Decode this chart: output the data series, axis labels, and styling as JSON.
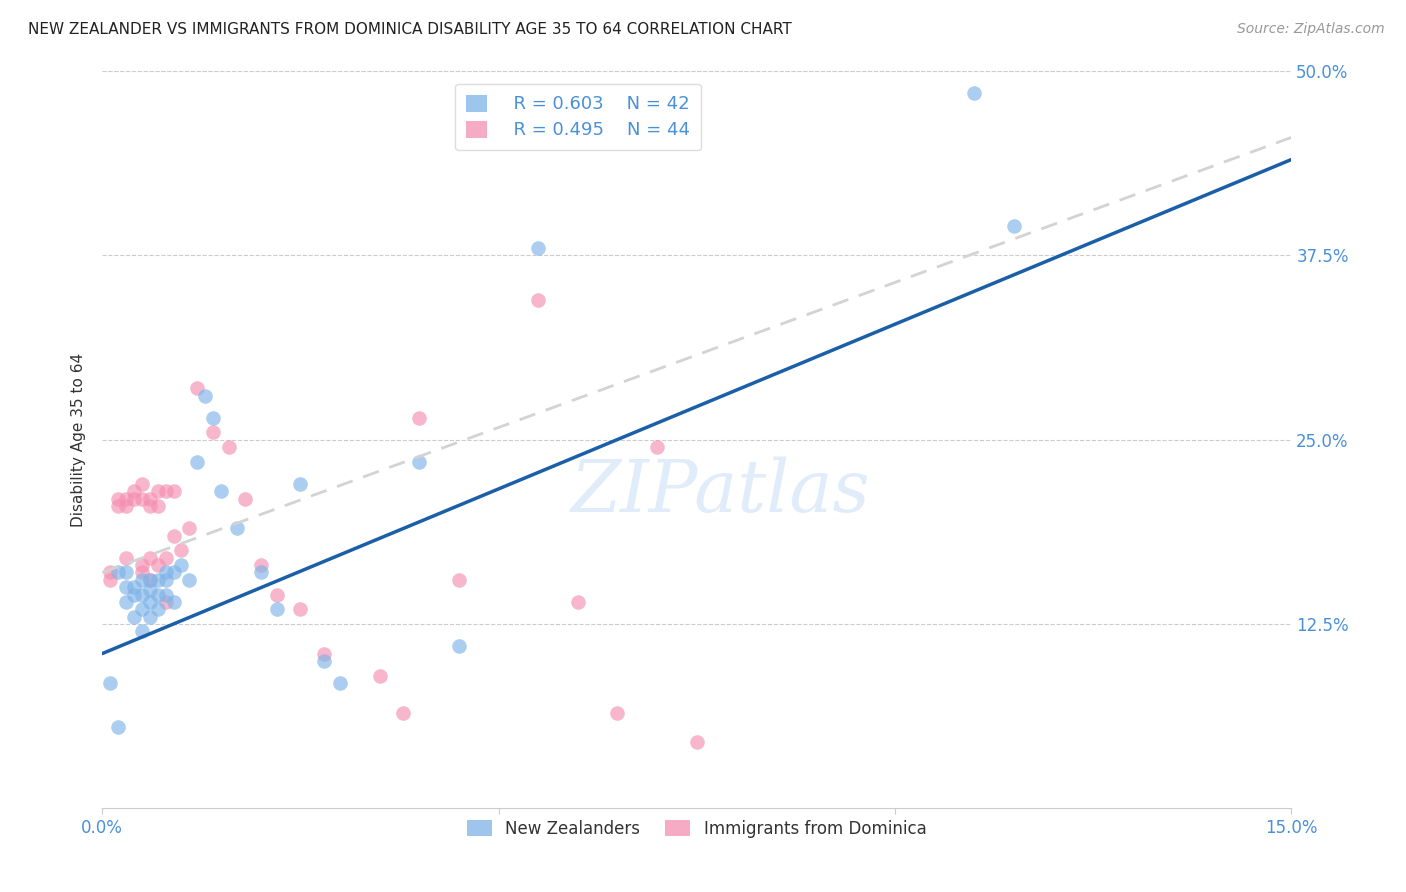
{
  "title": "NEW ZEALANDER VS IMMIGRANTS FROM DOMINICA DISABILITY AGE 35 TO 64 CORRELATION CHART",
  "source": "Source: ZipAtlas.com",
  "ylabel": "Disability Age 35 to 64",
  "xmin": 0.0,
  "xmax": 0.15,
  "ymin": 0.0,
  "ymax": 0.5,
  "xticks": [
    0.0,
    0.05,
    0.1,
    0.15
  ],
  "yticks": [
    0.0,
    0.125,
    0.25,
    0.375,
    0.5
  ],
  "legend_r_blue": "R = 0.603",
  "legend_n_blue": "N = 42",
  "legend_r_pink": "R = 0.495",
  "legend_n_pink": "N = 44",
  "blue_color": "#7EB3E8",
  "pink_color": "#F48FB1",
  "blue_line_color": "#1A5FA8",
  "pink_line_color": "#D3D3D3",
  "watermark_text": "ZIPatlas",
  "blue_scatter_x": [
    0.001,
    0.002,
    0.002,
    0.003,
    0.003,
    0.003,
    0.004,
    0.004,
    0.004,
    0.005,
    0.005,
    0.005,
    0.005,
    0.006,
    0.006,
    0.006,
    0.006,
    0.007,
    0.007,
    0.007,
    0.008,
    0.008,
    0.008,
    0.009,
    0.009,
    0.01,
    0.011,
    0.012,
    0.013,
    0.014,
    0.015,
    0.017,
    0.02,
    0.022,
    0.025,
    0.028,
    0.03,
    0.04,
    0.045,
    0.055,
    0.11,
    0.115
  ],
  "blue_scatter_y": [
    0.085,
    0.055,
    0.16,
    0.16,
    0.15,
    0.14,
    0.15,
    0.145,
    0.13,
    0.155,
    0.145,
    0.135,
    0.12,
    0.155,
    0.148,
    0.14,
    0.13,
    0.155,
    0.145,
    0.135,
    0.16,
    0.155,
    0.145,
    0.16,
    0.14,
    0.165,
    0.155,
    0.235,
    0.28,
    0.265,
    0.215,
    0.19,
    0.16,
    0.135,
    0.22,
    0.1,
    0.085,
    0.235,
    0.11,
    0.38,
    0.485,
    0.395
  ],
  "pink_scatter_x": [
    0.001,
    0.001,
    0.002,
    0.002,
    0.003,
    0.003,
    0.003,
    0.004,
    0.004,
    0.005,
    0.005,
    0.005,
    0.005,
    0.006,
    0.006,
    0.006,
    0.006,
    0.007,
    0.007,
    0.007,
    0.008,
    0.008,
    0.008,
    0.009,
    0.009,
    0.01,
    0.011,
    0.012,
    0.014,
    0.016,
    0.018,
    0.02,
    0.022,
    0.025,
    0.028,
    0.035,
    0.038,
    0.04,
    0.045,
    0.055,
    0.06,
    0.065,
    0.07,
    0.075
  ],
  "pink_scatter_y": [
    0.16,
    0.155,
    0.21,
    0.205,
    0.21,
    0.205,
    0.17,
    0.215,
    0.21,
    0.22,
    0.21,
    0.165,
    0.16,
    0.21,
    0.205,
    0.17,
    0.155,
    0.215,
    0.205,
    0.165,
    0.215,
    0.17,
    0.14,
    0.215,
    0.185,
    0.175,
    0.19,
    0.285,
    0.255,
    0.245,
    0.21,
    0.165,
    0.145,
    0.135,
    0.105,
    0.09,
    0.065,
    0.265,
    0.155,
    0.345,
    0.14,
    0.065,
    0.245,
    0.045
  ],
  "blue_line_x": [
    0.0,
    0.15
  ],
  "blue_line_y": [
    0.105,
    0.44
  ],
  "pink_line_x": [
    0.0,
    0.15
  ],
  "pink_line_y": [
    0.16,
    0.455
  ]
}
